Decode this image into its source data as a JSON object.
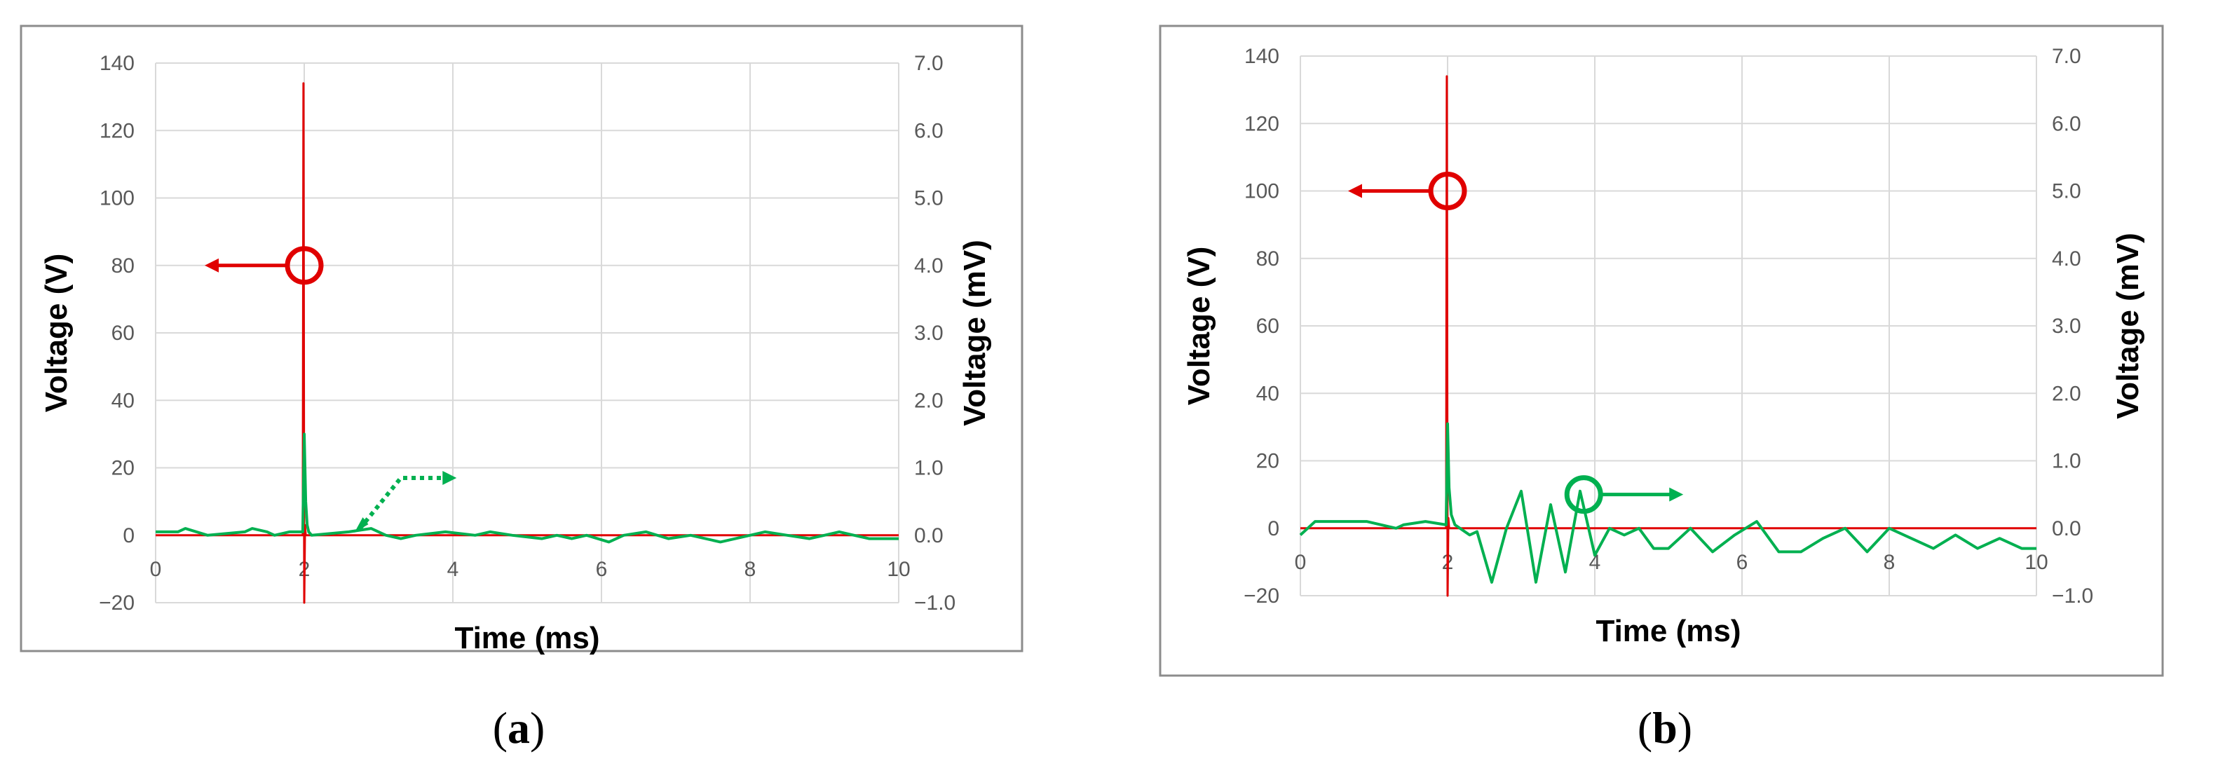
{
  "colors": {
    "voltage_v": "#e00000",
    "voltage_mv": "#00b050",
    "grid": "#d9d9d9",
    "frame": "#8c8c8c",
    "tick_text": "#595959"
  },
  "chart_data": [
    {
      "panel_label": "a",
      "type": "line",
      "xlabel": "Time (ms)",
      "ylabel_left": "Voltage (V)",
      "ylabel_right": "Voltage (mV)",
      "xlim": [
        0,
        10
      ],
      "ylim_left": [
        -20,
        140
      ],
      "ylim_right": [
        -1.0,
        7.0
      ],
      "x_ticks": [
        "0",
        "2",
        "4",
        "6",
        "8",
        "10"
      ],
      "y_ticks_left": [
        "−20",
        "0",
        "20",
        "40",
        "60",
        "80",
        "100",
        "120",
        "140"
      ],
      "y_ticks_right": [
        "−1.0",
        "0.0",
        "1.0",
        "2.0",
        "3.0",
        "4.0",
        "5.0",
        "6.0",
        "7.0"
      ],
      "grid": true,
      "series": [
        {
          "axis": "left",
          "color": "#e00000",
          "x": [
            0,
            1.98,
            1.99,
            2.0,
            2.01,
            2.02,
            10
          ],
          "y": [
            0,
            0,
            134,
            -20,
            3,
            0,
            0
          ]
        },
        {
          "axis": "right",
          "color": "#00b050",
          "x": [
            0,
            0.3,
            0.4,
            0.7,
            1.2,
            1.3,
            1.5,
            1.6,
            1.8,
            1.98,
            2.0,
            2.02,
            2.04,
            2.06,
            2.1,
            2.6,
            2.9,
            3.1,
            3.3,
            3.5,
            3.9,
            4.3,
            4.5,
            4.8,
            5.2,
            5.4,
            5.6,
            5.8,
            6.1,
            6.3,
            6.6,
            6.9,
            7.2,
            7.6,
            8.0,
            8.2,
            8.5,
            8.8,
            9.0,
            9.2,
            9.4,
            9.6,
            10
          ],
          "y": [
            0.05,
            0.05,
            0.1,
            0.0,
            0.05,
            0.1,
            0.05,
            0.0,
            0.05,
            0.05,
            1.5,
            0.5,
            0.15,
            0.05,
            0.0,
            0.05,
            0.1,
            0.0,
            -0.05,
            0.0,
            0.05,
            0.0,
            0.05,
            0.0,
            -0.05,
            0.0,
            -0.05,
            0.0,
            -0.1,
            0.0,
            0.05,
            -0.05,
            0.0,
            -0.1,
            0.0,
            0.05,
            0.0,
            -0.05,
            0.0,
            0.05,
            0.0,
            -0.05,
            -0.05
          ]
        }
      ]
    },
    {
      "panel_label": "b",
      "type": "line",
      "xlabel": "Time (ms)",
      "ylabel_left": "Voltage (V)",
      "ylabel_right": "Voltage (mV)",
      "xlim": [
        0,
        10
      ],
      "ylim_left": [
        -20,
        140
      ],
      "ylim_right": [
        -1.0,
        7.0
      ],
      "x_ticks": [
        "0",
        "2",
        "4",
        "6",
        "8",
        "10"
      ],
      "y_ticks_left": [
        "−20",
        "0",
        "20",
        "40",
        "60",
        "80",
        "100",
        "120",
        "140"
      ],
      "y_ticks_right": [
        "−1.0",
        "0.0",
        "1.0",
        "2.0",
        "3.0",
        "4.0",
        "5.0",
        "6.0",
        "7.0"
      ],
      "grid": true,
      "series": [
        {
          "axis": "left",
          "color": "#e00000",
          "x": [
            0,
            1.98,
            1.99,
            2.0,
            2.01,
            2.02,
            10
          ],
          "y": [
            0,
            0,
            134,
            -20,
            3,
            0,
            0
          ]
        },
        {
          "axis": "right",
          "color": "#00b050",
          "x": [
            0,
            0.1,
            0.2,
            0.6,
            0.9,
            1.3,
            1.4,
            1.7,
            1.98,
            2.0,
            2.02,
            2.05,
            2.1,
            2.3,
            2.4,
            2.6,
            2.8,
            3.0,
            3.2,
            3.4,
            3.6,
            3.8,
            4.0,
            4.2,
            4.4,
            4.6,
            4.8,
            5.0,
            5.3,
            5.6,
            5.9,
            6.2,
            6.5,
            6.8,
            7.1,
            7.4,
            7.7,
            8.0,
            8.3,
            8.6,
            8.9,
            9.2,
            9.5,
            9.8,
            10
          ],
          "y": [
            -0.1,
            0.0,
            0.1,
            0.1,
            0.1,
            0.0,
            0.05,
            0.1,
            0.05,
            1.55,
            0.6,
            0.2,
            0.05,
            -0.1,
            -0.05,
            -0.8,
            0.0,
            0.55,
            -0.8,
            0.35,
            -0.65,
            0.55,
            -0.4,
            0.0,
            -0.1,
            0.0,
            -0.3,
            -0.3,
            0.0,
            -0.35,
            -0.1,
            0.1,
            -0.35,
            -0.35,
            -0.15,
            0.0,
            -0.35,
            0.0,
            -0.15,
            -0.3,
            -0.1,
            -0.3,
            -0.15,
            -0.3,
            -0.3
          ]
        }
      ]
    }
  ]
}
